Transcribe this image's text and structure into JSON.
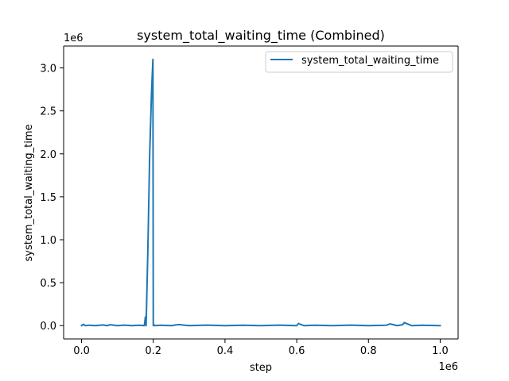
{
  "chart_data": {
    "type": "line",
    "title": "system_total_waiting_time (Combined)",
    "xlabel": "step",
    "ylabel": "system_total_waiting_time",
    "x_offset_label": "1e6",
    "y_offset_label": "1e6",
    "xlim": [
      -0.05,
      1.05
    ],
    "ylim": [
      -0.155,
      3.255
    ],
    "x_scale_multiplier": 1000000,
    "y_scale_multiplier": 1000000,
    "x_ticks": [
      0.0,
      0.2,
      0.4,
      0.6,
      0.8,
      1.0
    ],
    "x_tick_labels": [
      "0.0",
      "0.2",
      "0.4",
      "0.6",
      "0.8",
      "1.0"
    ],
    "y_ticks": [
      0.0,
      0.5,
      1.0,
      1.5,
      2.0,
      2.5,
      3.0
    ],
    "y_tick_labels": [
      "0.0",
      "0.5",
      "1.0",
      "1.5",
      "2.0",
      "2.5",
      "3.0"
    ],
    "grid": false,
    "legend_placement": "top-right",
    "series": [
      {
        "name": "system_total_waiting_time",
        "color": "#1f77b4",
        "x": [
          0.0,
          0.005,
          0.01,
          0.02,
          0.04,
          0.06,
          0.07,
          0.08,
          0.1,
          0.12,
          0.14,
          0.16,
          0.175,
          0.178,
          0.18,
          0.185,
          0.19,
          0.195,
          0.199,
          0.2,
          0.201,
          0.205,
          0.22,
          0.25,
          0.27,
          0.3,
          0.35,
          0.4,
          0.45,
          0.5,
          0.55,
          0.6,
          0.605,
          0.61,
          0.62,
          0.65,
          0.7,
          0.75,
          0.8,
          0.85,
          0.86,
          0.87,
          0.88,
          0.895,
          0.9,
          0.92,
          0.95,
          1.0
        ],
        "y": [
          0.0,
          0.015,
          0.0,
          0.005,
          0.0,
          0.008,
          0.0,
          0.01,
          0.0,
          0.006,
          0.0,
          0.004,
          0.0,
          0.1,
          0.0,
          0.9,
          2.0,
          2.7,
          3.1,
          0.0,
          0.01,
          0.0,
          0.004,
          0.0,
          0.012,
          0.0,
          0.006,
          0.0,
          0.005,
          0.0,
          0.006,
          0.0,
          0.025,
          0.015,
          0.0,
          0.005,
          0.0,
          0.006,
          0.0,
          0.005,
          0.02,
          0.01,
          0.0,
          0.01,
          0.035,
          0.0,
          0.005,
          0.0
        ]
      }
    ]
  }
}
